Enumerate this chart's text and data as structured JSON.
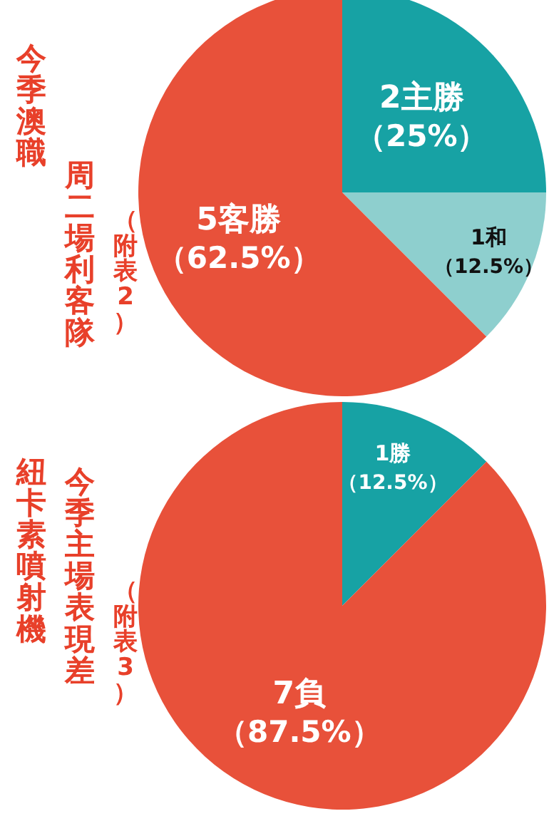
{
  "chart_data": [
    {
      "type": "pie",
      "title": "今季澳職",
      "subtitle": "周二場利客隊",
      "annotations": [
        "（附表2）"
      ],
      "categories": [
        "2主勝",
        "1和",
        "5客勝"
      ],
      "values": [
        25,
        12.5,
        62.5
      ],
      "value_labels": [
        "（25%）",
        "（12.5%）",
        "（62.5%）"
      ],
      "colors": [
        "#17a2a4",
        "#8ecfce",
        "#e8513a"
      ]
    },
    {
      "type": "pie",
      "title": "紐卡素噴射機",
      "subtitle": "今季主場表現差",
      "annotations": [
        "（附表3）"
      ],
      "categories": [
        "1勝",
        "7負"
      ],
      "values": [
        12.5,
        87.5
      ],
      "value_labels": [
        "（12.5%）",
        "（87.5%）"
      ],
      "colors": [
        "#17a2a4",
        "#e8513a"
      ]
    }
  ]
}
